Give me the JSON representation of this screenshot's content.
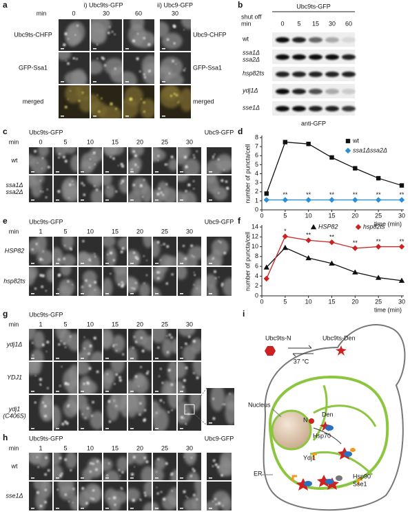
{
  "figure": {
    "a": {
      "label": "a",
      "header_i": "i) Ubc9ts-GFP",
      "header_ii": "ii) Ubc9-GFP",
      "min": "min",
      "times_i": [
        0,
        30,
        60
      ],
      "times_ii": [
        30
      ],
      "rows_i": [
        "Ubc9ts-CHFP",
        "GFP-Ssa1",
        "merged"
      ],
      "rows_ii": [
        "Ubc9-CHFP",
        "GFP-Ssa1",
        "merged"
      ]
    },
    "b": {
      "label": "b",
      "title": "Ubc9ts-GFP",
      "shut_off": "shut off",
      "min": "min",
      "times": [
        0,
        5,
        15,
        30,
        60
      ],
      "rows": [
        [
          "wt"
        ],
        [
          "ssa1Δ",
          "ssa2Δ"
        ],
        [
          "hsp82ts"
        ],
        [
          "ydj1Δ"
        ],
        [
          "sse1Δ"
        ]
      ],
      "footer": "anti-GFP"
    },
    "c": {
      "label": "c",
      "header": "Ubc9ts-GFP",
      "header_ctrl": "Ubc9-GFP",
      "min": "min",
      "times": [
        0,
        5,
        10,
        15,
        20,
        25,
        30
      ],
      "rows": [
        [
          "wt"
        ],
        [
          "ssa1Δ",
          "ssa2Δ"
        ]
      ]
    },
    "d": {
      "label": "d"
    },
    "e": {
      "label": "e",
      "header": "Ubc9ts-GFP",
      "header_ctrl": "Ubc9-GFP",
      "min": "min",
      "times": [
        1,
        5,
        10,
        15,
        20,
        25,
        30
      ],
      "rows": [
        [
          "HSP82"
        ],
        [
          "hsp82ts"
        ]
      ]
    },
    "f": {
      "label": "f"
    },
    "g": {
      "label": "g",
      "header": "Ubc9ts-GFP",
      "min": "min",
      "times": [
        1,
        5,
        10,
        15,
        20,
        25,
        30
      ],
      "rows": [
        [
          "ydj1Δ"
        ],
        [
          "YDJ1"
        ],
        [
          "ydj1",
          "(C406S)"
        ]
      ]
    },
    "h": {
      "label": "h",
      "header": "Ubc9ts-GFP",
      "header_ctrl": "Ubc9-GFP",
      "min": "min",
      "times": [
        1,
        5,
        10,
        15,
        20,
        25,
        30
      ],
      "rows": [
        [
          "wt"
        ],
        [
          "sse1Δ"
        ]
      ]
    },
    "i": {
      "label": "i",
      "n_form": "Ubc9ts-N",
      "den_form": "Ubc9ts-Den",
      "temp": "37 °C",
      "nucleus": "Nucleus",
      "n": "N",
      "den": "Den",
      "hsp70": "Hsp70",
      "ydj1": "Ydj1",
      "hsp90": "Hsp90",
      "sse1": "Sse1",
      "er": "ER"
    }
  },
  "chart_data": [
    {
      "type": "line",
      "ylabel": "number of puncta/cell",
      "xlabel": "time (min)",
      "xlim": [
        0,
        30
      ],
      "xticks": [
        0,
        5,
        10,
        15,
        20,
        25,
        30
      ],
      "ylim": [
        0,
        8
      ],
      "yticks": [
        0,
        1,
        2,
        3,
        4,
        5,
        6,
        7,
        8
      ],
      "legend": "upper right",
      "x": [
        1,
        5,
        10,
        15,
        20,
        25,
        30
      ],
      "series": [
        {
          "name": "wt",
          "color": "#111111",
          "marker": "square",
          "values": [
            1.8,
            7.5,
            7.3,
            5.8,
            4.6,
            3.5,
            2.7
          ]
        },
        {
          "name": "ssa1Δssa2Δ",
          "color": "#2a8fd6",
          "marker": "diamond",
          "values": [
            1.1,
            1.1,
            1.1,
            1.1,
            1.1,
            1.1,
            1.1
          ],
          "annotations": [
            {
              "x": 5,
              "text": "**"
            },
            {
              "x": 10,
              "text": "**"
            },
            {
              "x": 15,
              "text": "**"
            },
            {
              "x": 20,
              "text": "**"
            },
            {
              "x": 25,
              "text": "**"
            },
            {
              "x": 30,
              "text": "**"
            }
          ]
        }
      ]
    },
    {
      "type": "line",
      "ylabel": "number of puncta/cell",
      "xlabel": "time (min)",
      "xlim": [
        0,
        30
      ],
      "xticks": [
        0,
        5,
        10,
        15,
        20,
        25,
        30
      ],
      "ylim": [
        0,
        14
      ],
      "yticks": [
        0,
        2,
        4,
        6,
        8,
        10,
        12,
        14
      ],
      "legend": "upper right",
      "x": [
        1,
        5,
        10,
        15,
        20,
        25,
        30
      ],
      "series": [
        {
          "name": "HSP82",
          "color": "#111111",
          "marker": "triangle",
          "values": [
            5.8,
            9.8,
            7.7,
            6.6,
            4.8,
            3.7,
            3.1
          ]
        },
        {
          "name": "hsp82ts",
          "color": "#cc2222",
          "marker": "diamond",
          "values": [
            3.5,
            12.1,
            11.3,
            10.9,
            9.7,
            10,
            10
          ],
          "annotations": [
            {
              "x": 5,
              "text": "*"
            },
            {
              "x": 10,
              "text": "**"
            },
            {
              "x": 15,
              "text": "**"
            },
            {
              "x": 20,
              "text": "**"
            },
            {
              "x": 25,
              "text": "**"
            },
            {
              "x": 30,
              "text": "**"
            }
          ]
        }
      ]
    }
  ]
}
